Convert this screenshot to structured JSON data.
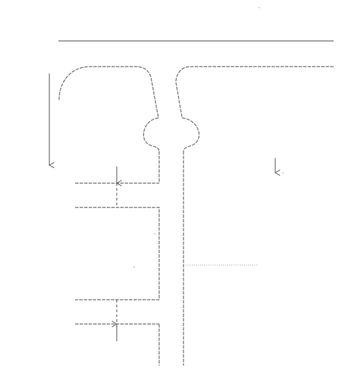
{
  "figure": {
    "type": "technical line drawing",
    "palette": {
      "stroke": "#6a6a6a",
      "dotted_stroke": "#9a9a9a",
      "background": "#ffffff"
    },
    "elements": [
      "top-horizontal-line",
      "left-curved-branch",
      "right-curved-branch",
      "central-rounded-junction",
      "left-vertical-wall",
      "right-vertical-wall",
      "upper-horizontal-step",
      "middle-box",
      "lower-horizontal-step",
      "left-down-arrow",
      "right-down-arrow",
      "upper-gap-arrow",
      "lower-gap-arrow",
      "dotted-leader-line"
    ]
  }
}
